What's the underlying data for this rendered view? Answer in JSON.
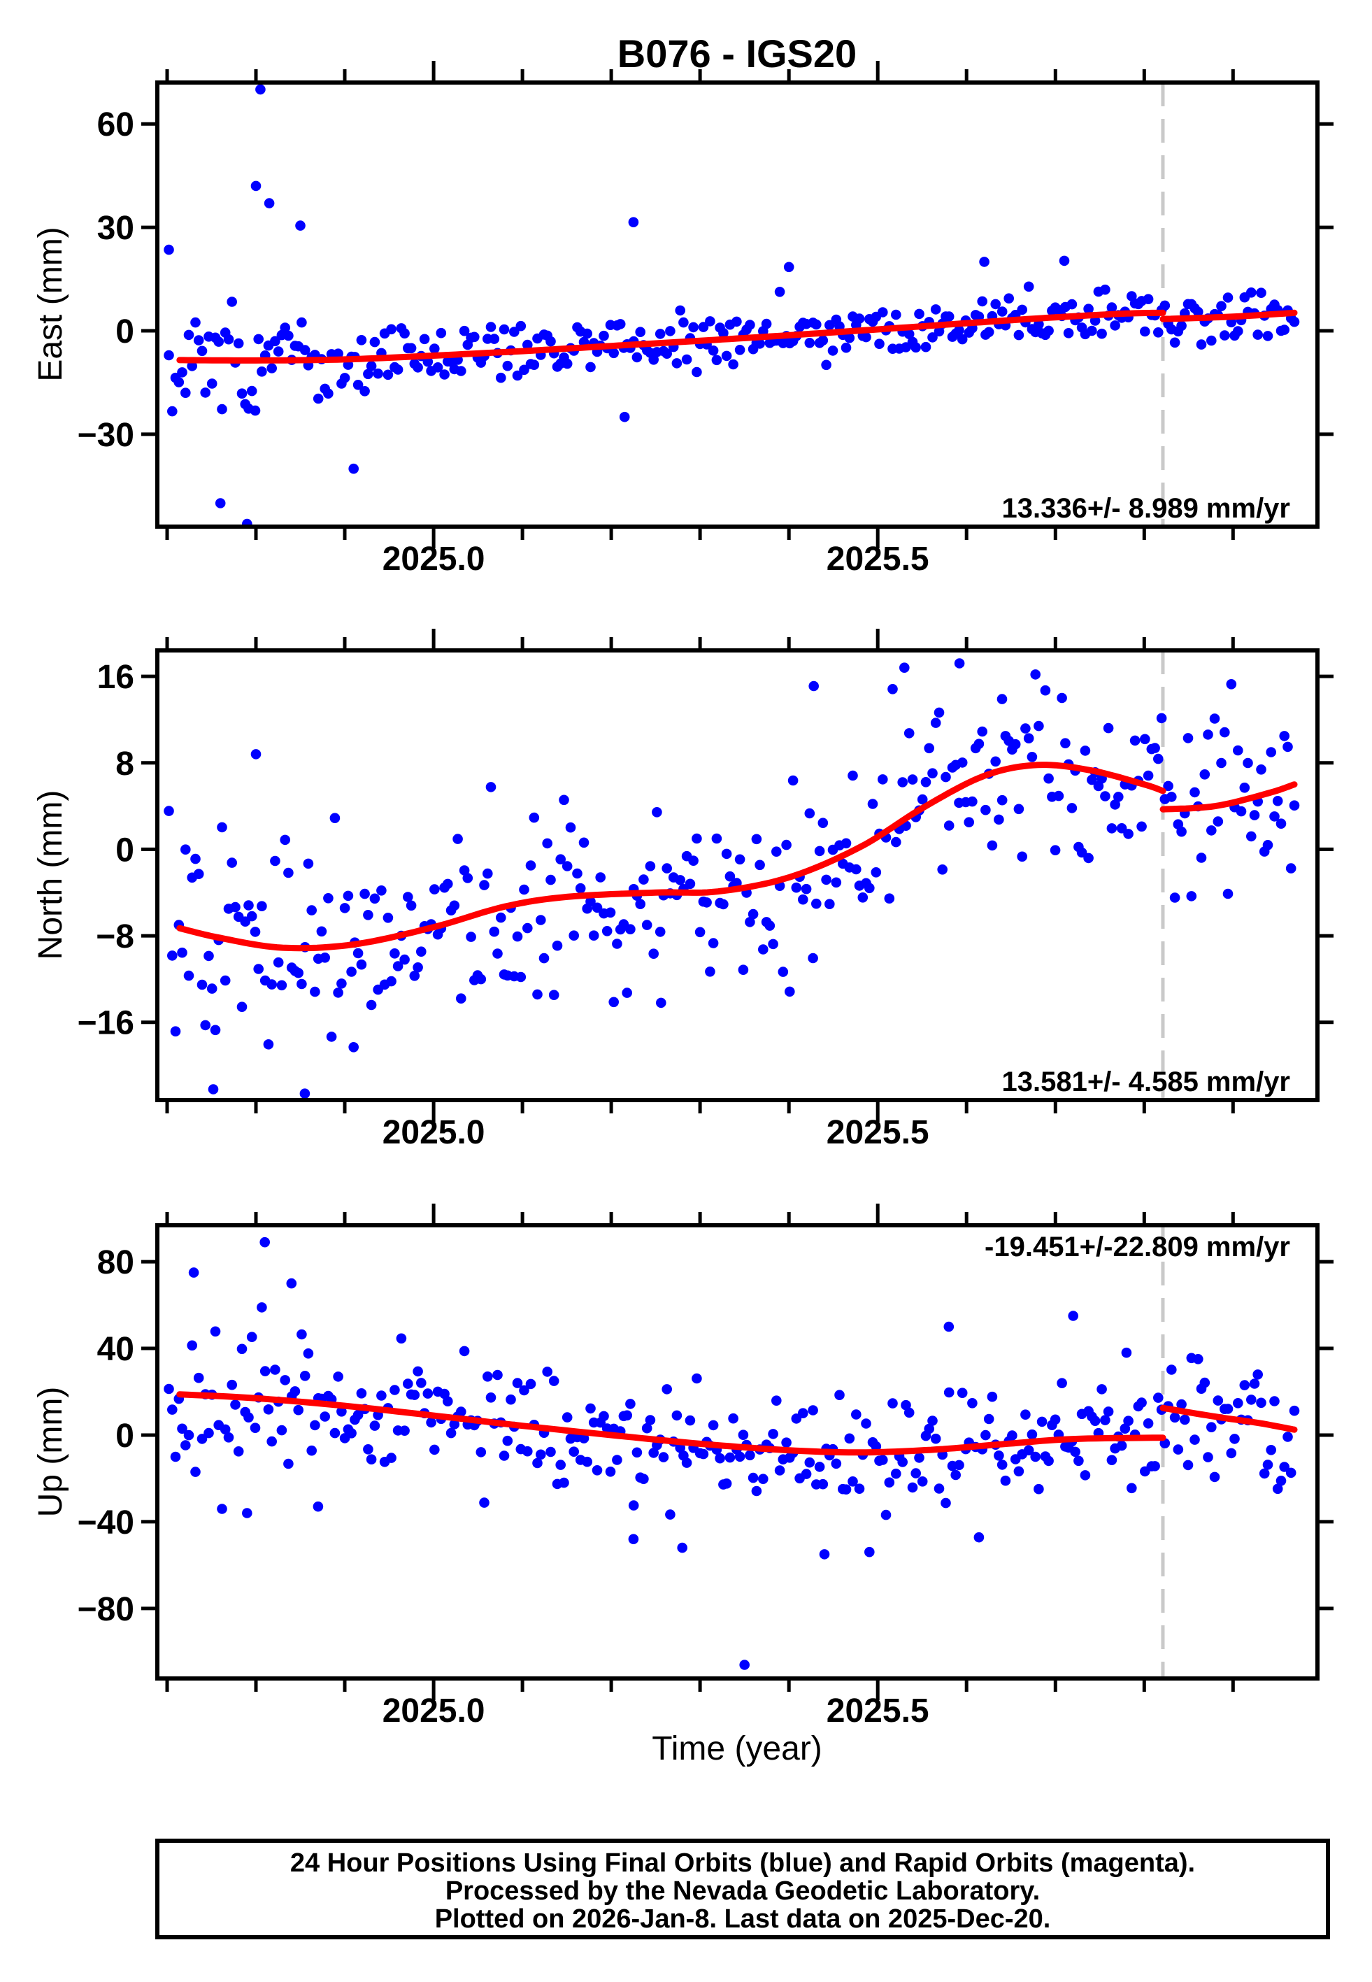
{
  "title": "B076 - IGS20",
  "footer": {
    "line1": "24 Hour Positions Using Final Orbits (blue) and Rapid Orbits (magenta).",
    "line2": "Processed by the Nevada Geodetic Laboratory.",
    "line3": "Plotted on 2026-Jan-8. Last data on 2025-Dec-20."
  },
  "chart_data": {
    "type": "scatter",
    "title": "B076 - IGS20",
    "xlabel": "Time (year)",
    "xlim": [
      2024.689,
      2025.995
    ],
    "x_major_ticks": [
      2025.0,
      2025.5
    ],
    "x_minor_step": 0.1,
    "x_minor_start": 2024.7,
    "x_minor_count": 13,
    "event_line_x": 2025.821,
    "data_x_start": 2024.702,
    "data_x_end": 2025.969,
    "points_per_series": 340,
    "colors": {
      "points_final": "#0000ff",
      "points_rapid": "#ff00ff",
      "trend": "#ff0000",
      "event_line": "#c9c9c9",
      "frame": "#000000",
      "background": "#ffffff"
    },
    "panels": [
      {
        "id": "east",
        "ylabel": "East (mm)",
        "ylim": [
          -56.8,
          72.0
        ],
        "yticks": [
          -30,
          0,
          30,
          60
        ],
        "annotation": "13.336+/- 8.989 mm/yr",
        "annotation_corner": "bottom-right",
        "trend_pre": [
          [
            2024.714,
            -8.5
          ],
          [
            2024.8,
            -8.6
          ],
          [
            2024.9,
            -8.3
          ],
          [
            2025.0,
            -7.2
          ],
          [
            2025.1,
            -5.9
          ],
          [
            2025.2,
            -4.4
          ],
          [
            2025.3,
            -2.9
          ],
          [
            2025.4,
            -1.3
          ],
          [
            2025.5,
            0.4
          ],
          [
            2025.6,
            2.2
          ],
          [
            2025.7,
            3.9
          ],
          [
            2025.78,
            5.0
          ],
          [
            2025.821,
            5.2
          ]
        ],
        "trend_post": [
          [
            2025.821,
            3.4
          ],
          [
            2025.9,
            4.1
          ],
          [
            2025.969,
            5.2
          ]
        ],
        "noise_sigma": [
          [
            2024.702,
            7.5
          ],
          [
            2024.95,
            5.0
          ],
          [
            2025.15,
            4.0
          ],
          [
            2025.969,
            3.8
          ]
        ],
        "seed": 101,
        "outliers": [
          [
            2024.702,
            23.5
          ],
          [
            2024.76,
            -50
          ],
          [
            2024.79,
            -56
          ],
          [
            2024.8,
            42
          ],
          [
            2024.805,
            70
          ],
          [
            2024.815,
            37
          ],
          [
            2024.85,
            30.5
          ],
          [
            2024.91,
            -40
          ],
          [
            2025.215,
            -25
          ],
          [
            2025.225,
            31.5
          ],
          [
            2025.4,
            18.5
          ],
          [
            2025.62,
            20.0
          ],
          [
            2025.71,
            20.3
          ]
        ]
      },
      {
        "id": "north",
        "ylabel": "North (mm)",
        "ylim": [
          -23.2,
          18.4
        ],
        "yticks": [
          -16,
          -8,
          0,
          8,
          16
        ],
        "annotation": "13.581+/- 4.585 mm/yr",
        "annotation_corner": "bottom-right",
        "trend_pre": [
          [
            2024.714,
            -7.3
          ],
          [
            2024.76,
            -8.2
          ],
          [
            2024.83,
            -9.1
          ],
          [
            2024.91,
            -8.8
          ],
          [
            2025.0,
            -7.2
          ],
          [
            2025.08,
            -5.3
          ],
          [
            2025.15,
            -4.4
          ],
          [
            2025.25,
            -4.0
          ],
          [
            2025.32,
            -3.9
          ],
          [
            2025.4,
            -2.6
          ],
          [
            2025.48,
            0.2
          ],
          [
            2025.55,
            3.8
          ],
          [
            2025.62,
            6.8
          ],
          [
            2025.68,
            7.8
          ],
          [
            2025.74,
            7.3
          ],
          [
            2025.8,
            6.0
          ],
          [
            2025.821,
            5.4
          ]
        ],
        "trend_post": [
          [
            2025.821,
            3.7
          ],
          [
            2025.88,
            4.0
          ],
          [
            2025.94,
            5.2
          ],
          [
            2025.969,
            6.0
          ]
        ],
        "noise_sigma": [
          [
            2024.702,
            5.5
          ],
          [
            2025.0,
            4.5
          ],
          [
            2025.969,
            4.0
          ]
        ],
        "seed": 202,
        "outliers": [
          [
            2024.752,
            -22.2
          ],
          [
            2024.8,
            8.8
          ],
          [
            2024.855,
            -22.6
          ],
          [
            2024.91,
            -18.3
          ],
          [
            2025.256,
            -14.2
          ],
          [
            2025.428,
            15.1
          ],
          [
            2025.53,
            16.8
          ],
          [
            2025.592,
            17.2
          ],
          [
            2025.64,
            13.9
          ]
        ]
      },
      {
        "id": "up",
        "ylabel": "Up (mm)",
        "ylim": [
          -112.3,
          96.8
        ],
        "yticks": [
          -80,
          -40,
          0,
          40,
          80
        ],
        "annotation": "-19.451+/-22.809 mm/yr",
        "annotation_corner": "top-right",
        "trend_pre": [
          [
            2024.714,
            18.8
          ],
          [
            2024.8,
            17.0
          ],
          [
            2024.9,
            13.5
          ],
          [
            2025.0,
            9.0
          ],
          [
            2025.1,
            4.3
          ],
          [
            2025.2,
            0.0
          ],
          [
            2025.3,
            -4.0
          ],
          [
            2025.4,
            -7.0
          ],
          [
            2025.48,
            -8.0
          ],
          [
            2025.56,
            -6.8
          ],
          [
            2025.64,
            -4.2
          ],
          [
            2025.72,
            -1.8
          ],
          [
            2025.821,
            -1.2
          ]
        ],
        "trend_post": [
          [
            2025.821,
            12.5
          ],
          [
            2025.88,
            8.5
          ],
          [
            2025.93,
            5.5
          ],
          [
            2025.969,
            2.5
          ]
        ],
        "noise_sigma": [
          [
            2024.702,
            20
          ],
          [
            2025.0,
            14
          ],
          [
            2025.969,
            12
          ]
        ],
        "seed": 303,
        "outliers": [
          [
            2024.73,
            75
          ],
          [
            2024.79,
            -36
          ],
          [
            2024.81,
            89
          ],
          [
            2024.84,
            70
          ],
          [
            2024.87,
            -33
          ],
          [
            2025.225,
            -48
          ],
          [
            2025.28,
            -52
          ],
          [
            2025.35,
            -106
          ],
          [
            2025.44,
            -55
          ],
          [
            2025.58,
            50
          ],
          [
            2025.72,
            55
          ],
          [
            2025.78,
            38
          ]
        ]
      }
    ]
  }
}
